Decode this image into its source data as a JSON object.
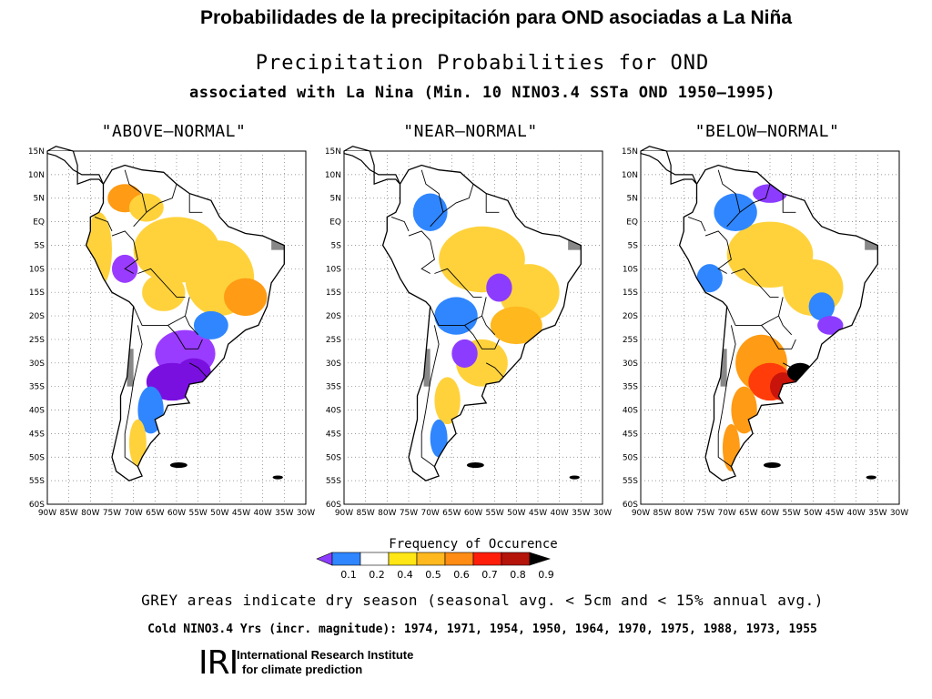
{
  "slide_title": "Probabilidades de la precipitación para OND asociadas a La Niña",
  "figure": {
    "title": "Precipitation Probabilities for OND",
    "subtitle": "associated with La Nina (Min. 10 NINO3.4 SSTa OND 1950–1995)"
  },
  "panels": [
    {
      "title": "\"ABOVE–NORMAL\"",
      "dominant_colors": [
        "#ffd23c",
        "#ff9b14",
        "#9a3cff",
        "#7a10e0",
        "#2f86ff"
      ]
    },
    {
      "title": "\"NEAR–NORMAL\"",
      "dominant_colors": [
        "#ffd23c",
        "#ffb81e",
        "#2f86ff",
        "#8c3cff"
      ]
    },
    {
      "title": "\"BELOW–NORMAL\"",
      "dominant_colors": [
        "#ffd23c",
        "#ff9b14",
        "#ff3c0a",
        "#c8140a",
        "#000000"
      ]
    }
  ],
  "axes": {
    "lat_labels": [
      "15N",
      "10N",
      "5N",
      "EQ",
      "5S",
      "10S",
      "15S",
      "20S",
      "25S",
      "30S",
      "35S",
      "40S",
      "45S",
      "50S",
      "55S",
      "60S"
    ],
    "lon_labels": [
      "90W",
      "85W",
      "80W",
      "75W",
      "70W",
      "65W",
      "60W",
      "55W",
      "50W",
      "45W",
      "40W",
      "35W",
      "30W"
    ]
  },
  "colorbar": {
    "label": "Frequency of Occurence",
    "ticks": [
      "0.1",
      "0.2",
      "0.4",
      "0.5",
      "0.6",
      "0.7",
      "0.8",
      "0.9"
    ],
    "colors": [
      "#8c3cff",
      "#2f86ff",
      "#ffffff",
      "#ffe614",
      "#ffb81e",
      "#ff8c14",
      "#ff1e0a",
      "#b4140a",
      "#000000"
    ]
  },
  "grey_note": "GREY areas indicate dry season (seasonal avg. < 5cm and < 15% annual avg.)",
  "cold_years": "Cold NINO3.4 Yrs (incr. magnitude): 1974, 1971, 1954, 1950, 1964, 1970, 1975, 1988, 1973, 1955",
  "logo": {
    "mark": "IRI",
    "line1": "International Research Institute",
    "line2": "for climate prediction"
  }
}
